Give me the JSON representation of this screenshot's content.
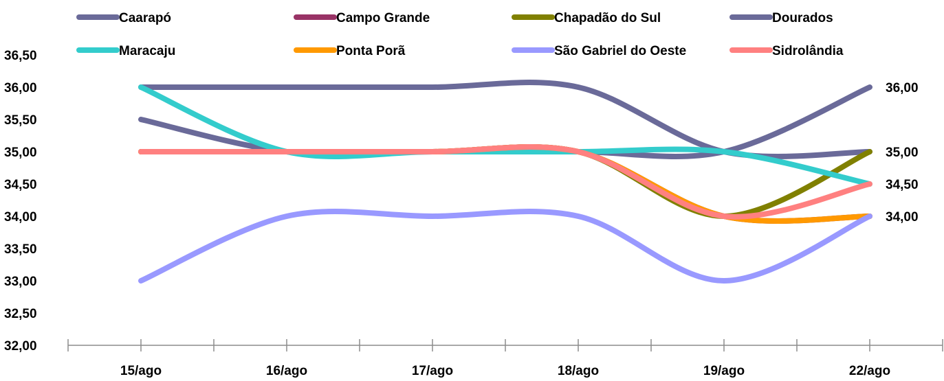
{
  "chart_data": {
    "type": "line",
    "categories": [
      "15/ago",
      "16/ago",
      "17/ago",
      "18/ago",
      "19/ago",
      "22/ago"
    ],
    "ylim": [
      32,
      36.5
    ],
    "yticks": [
      "32,00",
      "32,50",
      "33,00",
      "33,50",
      "34,00",
      "34,50",
      "35,00",
      "35,50",
      "36,00",
      "36,50"
    ],
    "legend_position": "top",
    "right_labels": [
      "36,00",
      "35,00",
      "34,50",
      "34,00"
    ],
    "smoothed": true,
    "series": [
      {
        "name": "Caarapó",
        "color": "#6a6a99",
        "values": [
          36,
          36,
          36,
          36,
          35,
          35
        ]
      },
      {
        "name": "Campo Grande",
        "color": "#993366",
        "values": [
          35,
          35,
          35,
          35,
          34,
          34
        ]
      },
      {
        "name": "Chapadão do Sul",
        "color": "#808000",
        "values": [
          35,
          35,
          35,
          35,
          34,
          35
        ]
      },
      {
        "name": "Dourados",
        "color": "#6a6a99",
        "values": [
          35.5,
          35,
          35,
          35,
          35,
          36
        ]
      },
      {
        "name": "Maracaju",
        "color": "#33cccc",
        "values": [
          36,
          35,
          35,
          35,
          35,
          34.5
        ]
      },
      {
        "name": "Ponta Porã",
        "color": "#ff9900",
        "values": [
          35,
          35,
          35,
          35,
          34,
          34
        ]
      },
      {
        "name": "São Gabriel do Oeste",
        "color": "#9999ff",
        "values": [
          33,
          34,
          34,
          34,
          33,
          34
        ]
      },
      {
        "name": "Sidrolândia",
        "color": "#ff8080",
        "values": [
          35,
          35,
          35,
          35,
          34,
          34.5
        ]
      }
    ]
  }
}
